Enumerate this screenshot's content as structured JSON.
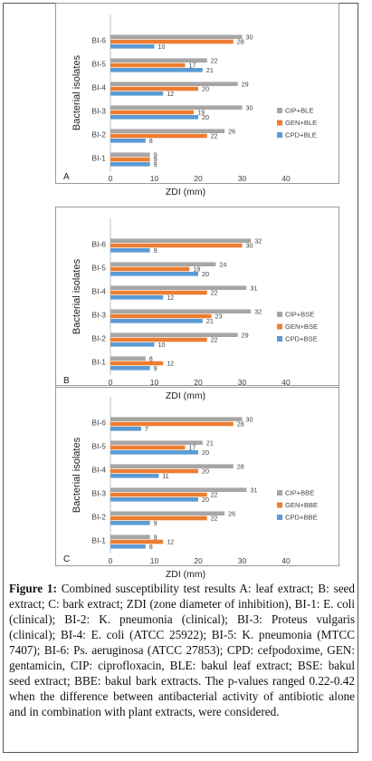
{
  "chart_data": [
    {
      "type": "bar",
      "panel_label": "A",
      "xlabel": "ZDI (mm)",
      "ylabel": "Bacterial isolates",
      "xlim": [
        0,
        40
      ],
      "xticks": [
        "0",
        "10",
        "20",
        "30",
        "40"
      ],
      "categories": [
        "BI-1",
        "BI-2",
        "BI-3",
        "BI-4",
        "BI-5",
        "BI-6"
      ],
      "series": [
        {
          "name": "CIP+BLE",
          "color": "#a6a6a6",
          "values": [
            9,
            26,
            30,
            29,
            22,
            30
          ]
        },
        {
          "name": "GEN+BLE",
          "color": "#ed7d31",
          "values": [
            9,
            22,
            19,
            20,
            17,
            28
          ]
        },
        {
          "name": "CPD+BLE",
          "color": "#5b9bd5",
          "values": [
            9,
            8,
            20,
            12,
            21,
            10
          ]
        }
      ],
      "legend_position": "right",
      "grid": false
    },
    {
      "type": "bar",
      "panel_label": "B",
      "xlabel": "ZDI (mm)",
      "ylabel": "Bacterial isolates",
      "xlim": [
        0,
        40
      ],
      "xticks": [
        "0",
        "10",
        "20",
        "30",
        "40"
      ],
      "categories": [
        "BI-1",
        "BI-2",
        "BI-3",
        "BI-4",
        "BI-5",
        "BI-6"
      ],
      "series": [
        {
          "name": "CIP+BSE",
          "color": "#a6a6a6",
          "values": [
            8,
            29,
            32,
            31,
            24,
            32
          ]
        },
        {
          "name": "GEN+BSE",
          "color": "#ed7d31",
          "values": [
            12,
            22,
            23,
            22,
            18,
            30
          ]
        },
        {
          "name": "CPD+BSE",
          "color": "#5b9bd5",
          "values": [
            9,
            10,
            21,
            12,
            20,
            9
          ]
        }
      ],
      "legend_position": "right",
      "grid": false
    },
    {
      "type": "bar",
      "panel_label": "C",
      "xlabel": "ZDI (mm)",
      "ylabel": "Bacterial isolates",
      "xlim": [
        0,
        40
      ],
      "xticks": [
        "0",
        "10",
        "20",
        "30",
        "40"
      ],
      "categories": [
        "BI-1",
        "BI-2",
        "BI-3",
        "BI-4",
        "BI-5",
        "BI-6"
      ],
      "series": [
        {
          "name": "CIP+BBE",
          "color": "#a6a6a6",
          "values": [
            9,
            26,
            31,
            28,
            21,
            30
          ]
        },
        {
          "name": "GEN+BBE",
          "color": "#ed7d31",
          "values": [
            12,
            22,
            22,
            20,
            17,
            28
          ]
        },
        {
          "name": "CPD+BBE",
          "color": "#5b9bd5",
          "values": [
            8,
            9,
            20,
            11,
            20,
            7
          ]
        }
      ],
      "legend_position": "right",
      "grid": false
    }
  ],
  "caption": {
    "label": "Figure 1:",
    "text": "Combined susceptibility test results A: leaf extract; B: seed extract; C: bark extract; ZDI (zone diameter of inhibition), BI-1: E. coli (clinical); BI-2: K. pneumonia (clinical); BI-3: Proteus vulgaris (clinical); BI-4: E. coli (ATCC 25922); BI-5: K. pneumonia (MTCC 7407); BI-6: Ps. aeruginosa (ATCC 27853); CPD: cefpodoxime, GEN: gentamicin, CIP: ciprofloxacin, BLE: bakul leaf extract; BSE: bakul seed extract; BBE: bakul bark extracts. The p-values ranged 0.22-0.42 when the difference between antibacterial activity of antibiotic alone and in combination with plant extracts, were considered."
  }
}
